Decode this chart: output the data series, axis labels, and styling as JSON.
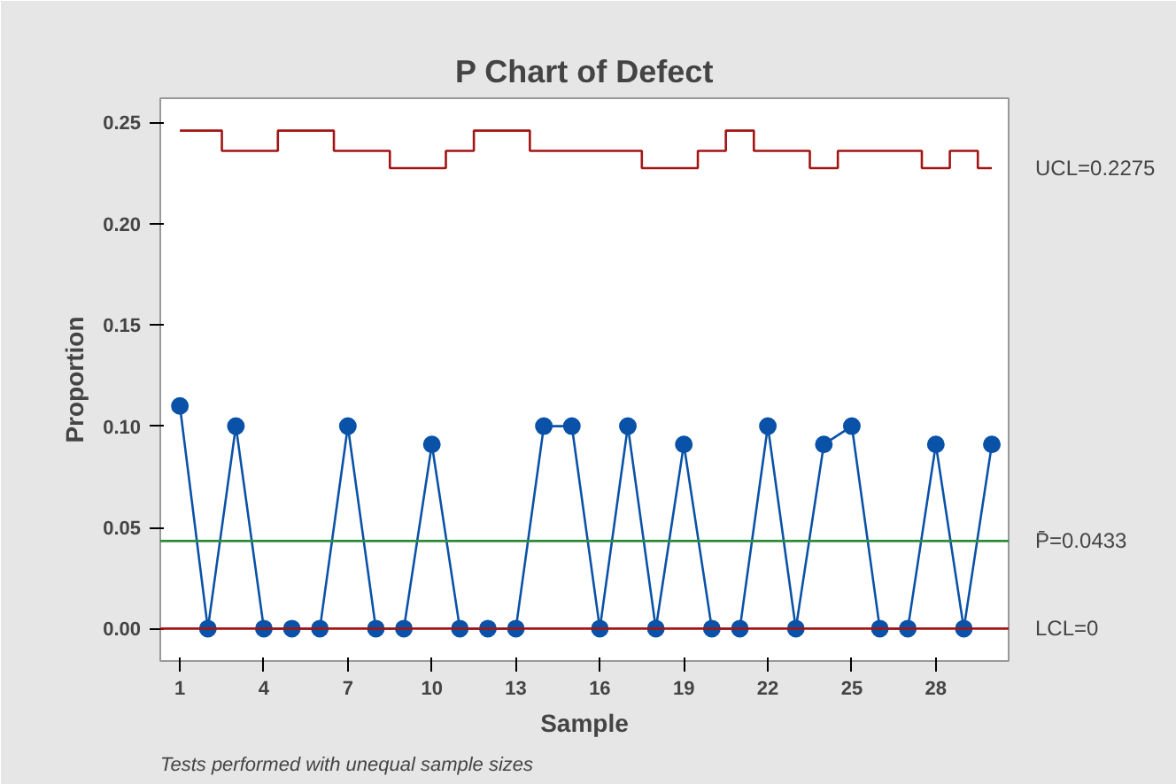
{
  "chart_data": {
    "type": "line",
    "title": "P Chart of Defect",
    "xlabel": "Sample",
    "ylabel": "Proportion",
    "x": [
      1,
      2,
      3,
      4,
      5,
      6,
      7,
      8,
      9,
      10,
      11,
      12,
      13,
      14,
      15,
      16,
      17,
      18,
      19,
      20,
      21,
      22,
      23,
      24,
      25,
      26,
      27,
      28,
      29,
      30
    ],
    "series": [
      {
        "color": "#0a52a8",
        "marker": "circle",
        "values": [
          0.11,
          0,
          0.1,
          0,
          0,
          0,
          0.1,
          0,
          0,
          0.091,
          0,
          0,
          0,
          0.1,
          0.1,
          0,
          0.1,
          0,
          0.091,
          0,
          0,
          0.1,
          0,
          0.091,
          0.1,
          0,
          0,
          0.091,
          0,
          0.091
        ]
      },
      {
        "type": "step",
        "color": "#a31515",
        "marker": "none",
        "values": [
          0.246,
          0.246,
          0.236,
          0.236,
          0.246,
          0.246,
          0.236,
          0.236,
          0.2275,
          0.2275,
          0.236,
          0.246,
          0.246,
          0.236,
          0.236,
          0.236,
          0.236,
          0.2275,
          0.2275,
          0.236,
          0.246,
          0.236,
          0.236,
          0.2275,
          0.236,
          0.236,
          0.236,
          0.2275,
          0.236,
          0.2275
        ]
      }
    ],
    "ref_lines": [
      {
        "axis": "y",
        "value": 0.0433,
        "label": "P̄=0.0433",
        "color": "#2e8b3a"
      },
      {
        "axis": "y",
        "value": 0,
        "label": "LCL=0",
        "color": "#a31515"
      }
    ],
    "annotations": [
      {
        "text": "UCL=0.2275",
        "x": 30,
        "y": 0.2275
      },
      "Tests performed with unequal sample sizes"
    ],
    "xlim": [
      0.3,
      30.6
    ],
    "xticks": [
      1,
      4,
      7,
      10,
      13,
      16,
      19,
      22,
      25,
      28
    ],
    "ylim": [
      -0.016,
      0.262
    ],
    "yticks": [
      {
        "value": 0,
        "label": "0.00"
      },
      {
        "value": 0.05,
        "label": "0.05"
      },
      {
        "value": 0.1,
        "label": "0.10"
      },
      {
        "value": 0.15,
        "label": "0.15"
      },
      {
        "value": 0.2,
        "label": "0.20"
      },
      {
        "value": 0.25,
        "label": "0.25"
      }
    ],
    "grid": false
  }
}
